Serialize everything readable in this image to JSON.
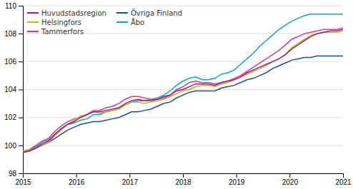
{
  "chart_data": {
    "type": "line",
    "x": [
      2015,
      2015.12,
      2015.24,
      2015.36,
      2015.48,
      2015.6,
      2015.72,
      2015.84,
      2015.96,
      2016.08,
      2016.2,
      2016.32,
      2016.44,
      2016.56,
      2016.68,
      2016.8,
      2016.92,
      2017.04,
      2017.16,
      2017.28,
      2017.4,
      2017.52,
      2017.64,
      2017.76,
      2017.88,
      2018,
      2018.12,
      2018.24,
      2018.36,
      2018.48,
      2018.6,
      2018.72,
      2018.84,
      2018.96,
      2019.08,
      2019.2,
      2019.32,
      2019.44,
      2019.56,
      2019.68,
      2019.8,
      2019.92,
      2020.04,
      2020.16,
      2020.28,
      2020.4,
      2020.52,
      2020.64,
      2020.76,
      2020.88,
      2021
    ],
    "series": [
      {
        "name": "Huvudstadsregion",
        "color": "#9B1D8A",
        "values": [
          99.5,
          99.6,
          99.8,
          100.1,
          100.3,
          100.8,
          101.2,
          101.5,
          101.7,
          102.0,
          102.2,
          102.4,
          102.4,
          102.5,
          102.6,
          102.7,
          103.0,
          103.2,
          103.3,
          103.2,
          103.2,
          103.3,
          103.5,
          103.6,
          103.9,
          104.0,
          104.2,
          104.4,
          104.4,
          104.4,
          104.3,
          104.5,
          104.6,
          104.7,
          104.9,
          105.2,
          105.4,
          105.6,
          105.8,
          106.0,
          106.2,
          106.5,
          106.9,
          107.2,
          107.5,
          107.8,
          108.0,
          108.1,
          108.2,
          108.2,
          108.3
        ]
      },
      {
        "name": "Helsingfors",
        "color": "#ADBC1C",
        "values": [
          99.6,
          99.7,
          99.8,
          100.0,
          100.2,
          100.7,
          101.1,
          101.5,
          101.8,
          102.1,
          102.2,
          102.4,
          102.3,
          102.4,
          102.5,
          102.6,
          102.9,
          103.1,
          103.1,
          103.0,
          103.1,
          103.2,
          103.3,
          103.5,
          103.7,
          103.9,
          104.0,
          104.2,
          104.3,
          104.3,
          104.2,
          104.4,
          104.5,
          104.7,
          104.9,
          105.1,
          105.3,
          105.5,
          105.7,
          106.0,
          106.2,
          106.5,
          107.0,
          107.3,
          107.6,
          107.9,
          108.0,
          108.1,
          108.1,
          108.1,
          108.2
        ]
      },
      {
        "name": "Tammerfors",
        "color": "#F0318C",
        "values": [
          99.5,
          99.7,
          100.0,
          100.3,
          100.5,
          101.0,
          101.4,
          101.7,
          101.9,
          102.0,
          102.2,
          102.5,
          102.5,
          102.7,
          102.8,
          103.0,
          103.3,
          103.5,
          103.5,
          103.4,
          103.3,
          103.3,
          103.4,
          103.6,
          104.0,
          104.2,
          104.5,
          104.6,
          104.5,
          104.5,
          104.4,
          104.5,
          104.6,
          104.8,
          105.0,
          105.3,
          105.6,
          105.9,
          106.2,
          106.5,
          106.8,
          107.2,
          107.6,
          107.8,
          108.0,
          108.1,
          108.2,
          108.3,
          108.3,
          108.3,
          108.4
        ]
      },
      {
        "name": "Övriga Finland",
        "color": "#1F4E96",
        "values": [
          99.5,
          99.6,
          99.8,
          100.0,
          100.2,
          100.5,
          100.8,
          101.1,
          101.3,
          101.5,
          101.6,
          101.7,
          101.7,
          101.8,
          101.9,
          102.0,
          102.2,
          102.4,
          102.4,
          102.5,
          102.6,
          102.8,
          103.0,
          103.1,
          103.4,
          103.6,
          103.8,
          103.9,
          103.9,
          103.9,
          103.9,
          104.1,
          104.2,
          104.3,
          104.5,
          104.7,
          104.8,
          105.0,
          105.2,
          105.5,
          105.7,
          105.9,
          106.1,
          106.2,
          106.3,
          106.3,
          106.4,
          106.4,
          106.4,
          106.4,
          106.4
        ]
      },
      {
        "name": "Åbo",
        "color": "#00B0B9",
        "values": [
          99.5,
          99.7,
          99.9,
          100.2,
          100.4,
          100.8,
          101.2,
          101.5,
          101.6,
          101.8,
          101.9,
          102.2,
          102.2,
          102.4,
          102.5,
          102.6,
          102.9,
          103.1,
          103.2,
          103.2,
          103.3,
          103.4,
          103.6,
          103.9,
          104.3,
          104.6,
          104.8,
          104.9,
          104.7,
          104.7,
          104.8,
          105.1,
          105.2,
          105.4,
          105.8,
          106.2,
          106.6,
          107.1,
          107.5,
          107.9,
          108.3,
          108.6,
          108.9,
          109.1,
          109.3,
          109.4,
          109.4,
          109.4,
          109.4,
          109.4,
          109.4
        ]
      }
    ],
    "xlim": [
      2015,
      2021
    ],
    "xticks": [
      2015,
      2016,
      2017,
      2018,
      2019,
      2020,
      2021
    ],
    "ylim": [
      98,
      110
    ],
    "yticks": [
      98,
      100,
      102,
      104,
      106,
      108,
      110
    ],
    "grid": true,
    "legend": "upper left"
  }
}
